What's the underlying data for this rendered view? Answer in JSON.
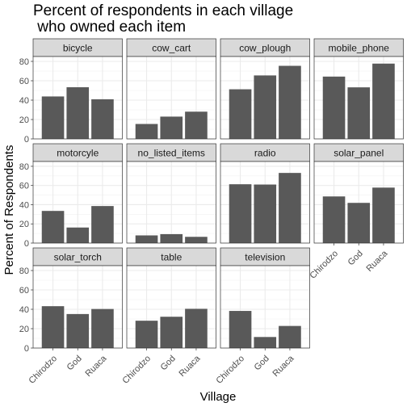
{
  "chart_data": {
    "type": "bar",
    "title_lines": [
      "Percent of respondents in each village",
      " who owned each item"
    ],
    "xlabel": "Village",
    "ylabel": "Percent of Respondents",
    "categories": [
      "Chirodzo",
      "God",
      "Ruaca"
    ],
    "ylim": [
      0,
      85
    ],
    "yticks": [
      0,
      20,
      40,
      60,
      80
    ],
    "grid": true,
    "bar_color": "#595959",
    "panels": [
      {
        "name": "bicycle",
        "values": [
          43.8,
          53.3,
          40.9
        ]
      },
      {
        "name": "cow_cart",
        "values": [
          15.4,
          23.0,
          28.1
        ]
      },
      {
        "name": "cow_plough",
        "values": [
          51.2,
          65.5,
          75.4
        ]
      },
      {
        "name": "mobile_phone",
        "values": [
          64.3,
          53.2,
          77.7
        ]
      },
      {
        "name": "motorcyle",
        "values": [
          33.5,
          16.2,
          38.6
        ]
      },
      {
        "name": "no_listed_items",
        "values": [
          8.0,
          9.3,
          6.5
        ]
      },
      {
        "name": "radio",
        "values": [
          61.3,
          61.0,
          73.1
        ]
      },
      {
        "name": "solar_panel",
        "values": [
          48.6,
          41.9,
          57.8
        ]
      },
      {
        "name": "solar_torch",
        "values": [
          43.2,
          35.1,
          40.3
        ]
      },
      {
        "name": "table",
        "values": [
          28.2,
          32.3,
          40.5
        ]
      },
      {
        "name": "television",
        "values": [
          38.3,
          11.4,
          22.8
        ]
      }
    ]
  }
}
